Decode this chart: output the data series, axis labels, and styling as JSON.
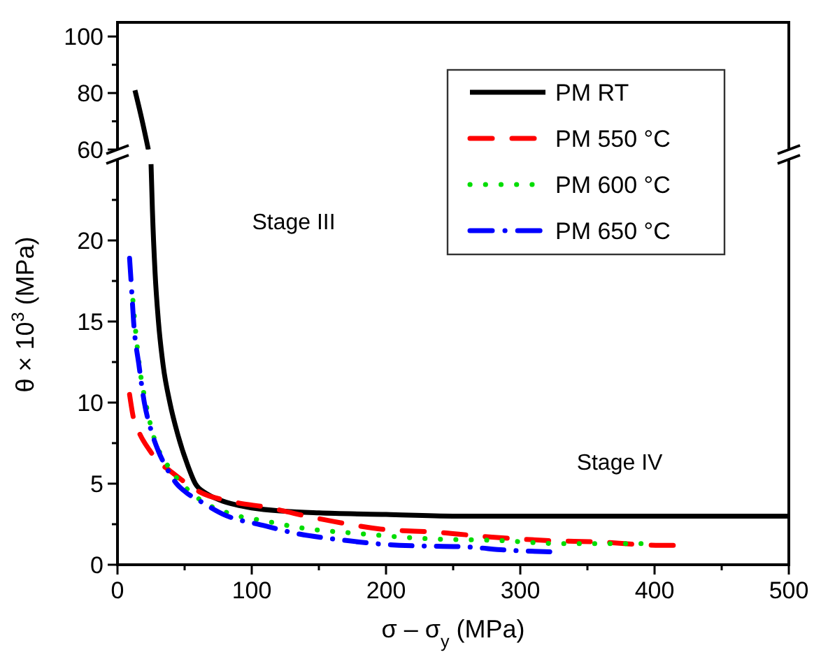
{
  "chart_data": [
    {
      "type": "line",
      "xlim": [
        0,
        500
      ],
      "ylim": [
        60,
        105
      ],
      "yticks": [
        60,
        {
          "value": 70,
          "label": null
        },
        80,
        {
          "value": 90,
          "label": null
        },
        100
      ],
      "tick_labels": "y",
      "grid": false,
      "legend": false,
      "series": [
        {
          "color": "#000000",
          "line_style": "solid",
          "x": [
            13,
            18,
            23
          ],
          "values": [
            81,
            71,
            60
          ]
        }
      ]
    },
    {
      "type": "line",
      "xlabel": "σ – σ$_{y}$ (MPa)",
      "ylabel": "θ × 10$^{3}$ (MPa)",
      "xlim": [
        0,
        500
      ],
      "xticks": [
        0,
        {
          "value": 50,
          "label": null
        },
        100,
        {
          "value": 150,
          "label": null
        },
        200,
        {
          "value": 250,
          "label": null
        },
        300,
        {
          "value": 350,
          "label": null
        },
        400,
        {
          "value": 450,
          "label": null
        },
        500
      ],
      "ylim": [
        0,
        25
      ],
      "yticks": [
        0,
        {
          "value": 2.5,
          "label": null
        },
        5,
        {
          "value": 7.5,
          "label": null
        },
        10,
        {
          "value": 12.5,
          "label": null
        },
        15,
        {
          "value": 17.5,
          "label": null
        },
        20,
        {
          "value": 22.5,
          "label": null
        }
      ],
      "grid": false,
      "legend": "top right",
      "annotations": [
        "Stage III",
        "Stage IV"
      ],
      "series": [
        {
          "name": "PM RT",
          "color": "#000000",
          "line_style": "solid",
          "x": [
            25,
            26,
            28,
            30.5,
            34,
            39,
            45,
            52,
            58,
            66,
            76,
            88,
            100,
            125,
            150,
            200,
            250,
            300,
            400,
            500
          ],
          "values": [
            24.7,
            21.9,
            18,
            15,
            12.3,
            10,
            8,
            6.2,
            5,
            4.4,
            4,
            3.7,
            3.5,
            3.3,
            3.2,
            3.1,
            3,
            3,
            3,
            3
          ]
        },
        {
          "name": "PM 550 °C",
          "color": "#ff0000",
          "line_style": "dashed",
          "x": [
            9,
            12,
            17,
            23.6,
            30,
            39,
            50,
            61,
            85,
            114,
            135,
            159,
            196,
            239,
            279,
            319,
            360,
            404,
            414
          ],
          "values": [
            10.5,
            9,
            8,
            7.1,
            6.4,
            5.8,
            5.1,
            4.5,
            3.9,
            3.5,
            3.1,
            2.7,
            2.2,
            2,
            1.7,
            1.5,
            1.4,
            1.2,
            1.2
          ]
        },
        {
          "name": "PM 600 °C",
          "color": "#00dd00",
          "line_style": "dotted",
          "x": [
            11.5,
            14,
            16.6,
            21,
            27,
            37.5,
            48,
            60,
            86,
            110,
            135,
            183,
            232,
            282,
            331,
            379,
            390
          ],
          "values": [
            16.3,
            14,
            12.1,
            10,
            7.9,
            6.1,
            5,
            4.1,
            3.1,
            2.7,
            2.3,
            1.9,
            1.6,
            1.5,
            1.3,
            1.3,
            1.3
          ]
        },
        {
          "name": "PM 650 °C",
          "color": "#0000ff",
          "line_style": "dashdot",
          "x": [
            9,
            10.5,
            12,
            16,
            20,
            25,
            30.5,
            37,
            44,
            52,
            60,
            79,
            110,
            135,
            160,
            210,
            260,
            290,
            322
          ],
          "values": [
            18.9,
            17,
            15,
            12.3,
            10,
            8.3,
            7,
            5.9,
            5,
            4.4,
            4,
            3.1,
            2.4,
            1.9,
            1.6,
            1.2,
            1.1,
            0.9,
            0.8
          ]
        }
      ]
    }
  ]
}
